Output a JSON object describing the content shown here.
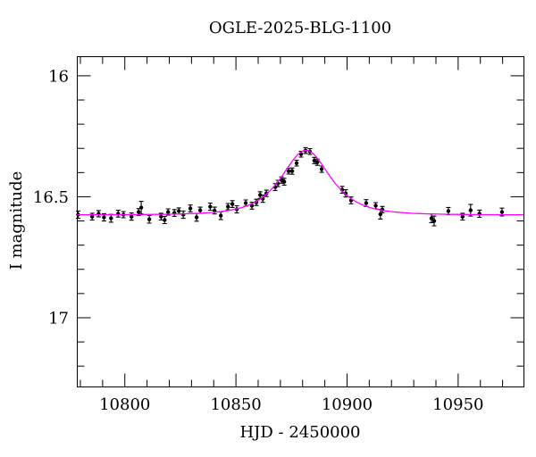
{
  "title": "OGLE-2025-BLG-1100",
  "axes": {
    "xlabel": "HJD - 2450000",
    "ylabel": "I magnitude"
  },
  "colors": {
    "background": "#ffffff",
    "frame": "#000000",
    "data_points": "#000000",
    "model_curve": "#ff00ff"
  },
  "chart_data": {
    "type": "scatter",
    "title": "OGLE-2025-BLG-1100",
    "xlabel": "HJD - 2450000",
    "ylabel": "I magnitude",
    "xlim": [
      10778.6,
      10979.6
    ],
    "ylim_mag": [
      15.921,
      17.286
    ],
    "y_axis_inverted_magnitude": true,
    "grid": false,
    "legend": "none",
    "x_major_ticks": [
      {
        "v": 10800,
        "label": "10800"
      },
      {
        "v": 10850,
        "label": "10850"
      },
      {
        "v": 10900,
        "label": "10900"
      },
      {
        "v": 10950,
        "label": "10950"
      }
    ],
    "x_minor_step": 10,
    "y_major_ticks": [
      {
        "v": 16.0,
        "label": "16"
      },
      {
        "v": 16.5,
        "label": "16.5"
      },
      {
        "v": 17.0,
        "label": "17"
      }
    ],
    "y_minor_step": 0.1,
    "series": [
      {
        "name": "I-band photometry",
        "kind": "scatter_errorbar",
        "color": "#000000",
        "points_format": [
          "hjd",
          "mag",
          "err"
        ],
        "points": [
          [
            10779.0,
            16.574,
            0.015
          ],
          [
            10785.3,
            16.582,
            0.014
          ],
          [
            10788.2,
            16.57,
            0.013
          ],
          [
            10790.6,
            16.585,
            0.015
          ],
          [
            10793.8,
            16.589,
            0.016
          ],
          [
            10797.0,
            16.57,
            0.014
          ],
          [
            10799.4,
            16.574,
            0.013
          ],
          [
            10803.0,
            16.582,
            0.015
          ],
          [
            10806.2,
            16.563,
            0.014
          ],
          [
            10807.4,
            16.545,
            0.026
          ],
          [
            10811.0,
            16.593,
            0.016
          ],
          [
            10816.3,
            16.582,
            0.014
          ],
          [
            10817.9,
            16.596,
            0.015
          ],
          [
            10819.5,
            16.563,
            0.013
          ],
          [
            10822.3,
            16.567,
            0.014
          ],
          [
            10824.3,
            16.559,
            0.013
          ],
          [
            10826.3,
            16.574,
            0.015
          ],
          [
            10829.5,
            16.548,
            0.014
          ],
          [
            10832.3,
            16.585,
            0.016
          ],
          [
            10833.9,
            16.556,
            0.013
          ],
          [
            10838.4,
            16.541,
            0.015
          ],
          [
            10840.4,
            16.557,
            0.014
          ],
          [
            10843.2,
            16.578,
            0.016
          ],
          [
            10846.4,
            16.541,
            0.013
          ],
          [
            10848.4,
            16.53,
            0.014
          ],
          [
            10850.4,
            16.552,
            0.015
          ],
          [
            10854.4,
            16.526,
            0.013
          ],
          [
            10857.2,
            16.537,
            0.014
          ],
          [
            10859.2,
            16.523,
            0.013
          ],
          [
            10860.9,
            16.493,
            0.014
          ],
          [
            10862.1,
            16.508,
            0.015
          ],
          [
            10863.7,
            16.486,
            0.013
          ],
          [
            10867.7,
            16.46,
            0.014
          ],
          [
            10868.9,
            16.445,
            0.013
          ],
          [
            10870.5,
            16.431,
            0.013
          ],
          [
            10871.7,
            16.438,
            0.014
          ],
          [
            10873.7,
            16.394,
            0.012
          ],
          [
            10875.3,
            16.394,
            0.013
          ],
          [
            10877.3,
            16.361,
            0.012
          ],
          [
            10879.3,
            16.324,
            0.012
          ],
          [
            10881.3,
            16.309,
            0.012
          ],
          [
            10883.3,
            16.313,
            0.012
          ],
          [
            10885.3,
            16.35,
            0.013
          ],
          [
            10886.6,
            16.357,
            0.013
          ],
          [
            10888.6,
            16.386,
            0.013
          ],
          [
            10897.8,
            16.471,
            0.014
          ],
          [
            10899.4,
            16.486,
            0.015
          ],
          [
            10901.8,
            16.515,
            0.014
          ],
          [
            10908.6,
            16.526,
            0.014
          ],
          [
            10912.9,
            16.537,
            0.013
          ],
          [
            10915.0,
            16.572,
            0.02
          ],
          [
            10915.9,
            16.553,
            0.013
          ],
          [
            10938.0,
            16.589,
            0.018
          ],
          [
            10939.2,
            16.6,
            0.02
          ],
          [
            10945.6,
            16.559,
            0.015
          ],
          [
            10952.0,
            16.582,
            0.014
          ],
          [
            10955.6,
            16.556,
            0.024
          ],
          [
            10959.6,
            16.57,
            0.015
          ],
          [
            10969.7,
            16.563,
            0.016
          ]
        ]
      },
      {
        "name": "microlensing model",
        "kind": "line",
        "color": "#ff00ff",
        "model": {
          "form": "paczynski",
          "t0": 10881.5,
          "tE_days": 12.5,
          "u0": 1.1,
          "baseline_mag": 16.575,
          "peak_mag": 16.31
        }
      }
    ]
  }
}
